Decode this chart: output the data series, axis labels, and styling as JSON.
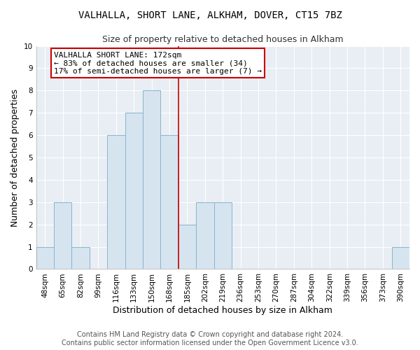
{
  "title": "VALHALLA, SHORT LANE, ALKHAM, DOVER, CT15 7BZ",
  "subtitle": "Size of property relative to detached houses in Alkham",
  "xlabel": "Distribution of detached houses by size in Alkham",
  "ylabel": "Number of detached properties",
  "bar_labels": [
    "48sqm",
    "65sqm",
    "82sqm",
    "99sqm",
    "116sqm",
    "133sqm",
    "150sqm",
    "168sqm",
    "185sqm",
    "202sqm",
    "219sqm",
    "236sqm",
    "253sqm",
    "270sqm",
    "287sqm",
    "304sqm",
    "322sqm",
    "339sqm",
    "356sqm",
    "373sqm",
    "390sqm"
  ],
  "bar_values": [
    1,
    3,
    1,
    0,
    6,
    7,
    8,
    6,
    2,
    3,
    3,
    0,
    0,
    0,
    0,
    0,
    0,
    0,
    0,
    0,
    1
  ],
  "bar_color": "#d6e4f0",
  "bar_edge_color": "#8ab4cc",
  "vline_color": "#cc0000",
  "ylim": [
    0,
    10
  ],
  "yticks": [
    0,
    1,
    2,
    3,
    4,
    5,
    6,
    7,
    8,
    9,
    10
  ],
  "annotation_title": "VALHALLA SHORT LANE: 172sqm",
  "annotation_line1": "← 83% of detached houses are smaller (34)",
  "annotation_line2": "17% of semi-detached houses are larger (7) →",
  "annotation_box_color": "#ffffff",
  "annotation_box_edge": "#cc0000",
  "footer_line1": "Contains HM Land Registry data © Crown copyright and database right 2024.",
  "footer_line2": "Contains public sector information licensed under the Open Government Licence v3.0.",
  "background_color": "#ffffff",
  "plot_bg_color": "#e8eef4",
  "grid_color": "#ffffff",
  "title_fontsize": 10,
  "subtitle_fontsize": 9,
  "axis_label_fontsize": 9,
  "tick_fontsize": 7.5,
  "annotation_fontsize": 8,
  "footer_fontsize": 7
}
